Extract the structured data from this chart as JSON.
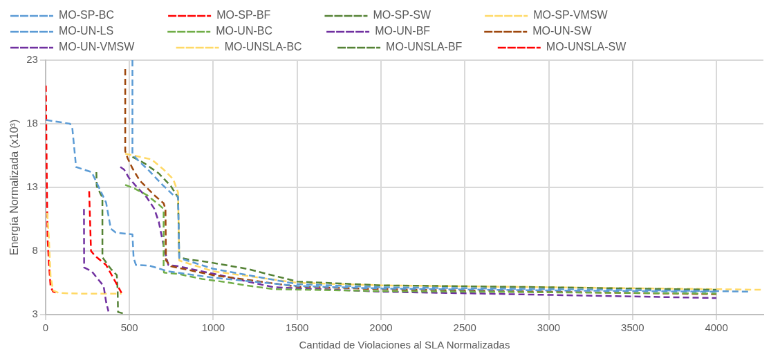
{
  "chart_data": {
    "type": "line",
    "xlabel": "Cantidad de Violaciones al SLA Normalizadas",
    "ylabel": "Energía Normalizada (x10³)",
    "xlim": [
      0,
      4280
    ],
    "xticks": [
      0,
      500,
      1000,
      1500,
      2000,
      2500,
      3000,
      3500,
      4000
    ],
    "ylim": [
      3,
      23
    ],
    "yticks": [
      3,
      8,
      13,
      18,
      23
    ],
    "grid": true,
    "legend": "top",
    "line_style": "dashed",
    "series": [
      {
        "name": "MO-SP-BC",
        "color": "#5b9bd5",
        "x": [
          518,
          518,
          546,
          618,
          697,
          761,
          790,
          797,
          1000,
          1500,
          2000,
          3000,
          4000,
          4190
        ],
        "values": [
          23,
          15.65,
          15.2,
          14.3,
          13.2,
          12.4,
          12.3,
          7.45,
          6.6,
          5.4,
          5.15,
          5.0,
          4.85,
          4.8
        ]
      },
      {
        "name": "MO-SP-BF",
        "color": "#ff0000",
        "x": [
          260,
          271,
          296,
          361,
          403,
          453
        ],
        "values": [
          12.7,
          8.0,
          7.6,
          6.9,
          5.9,
          4.7
        ]
      },
      {
        "name": "MO-SP-SW",
        "color": "#548235",
        "x": [
          518,
          589,
          675,
          747,
          790,
          797,
          847,
          961,
          1200,
          1500,
          2000,
          3000,
          4000
        ],
        "values": [
          15.4,
          14.9,
          14.1,
          13.1,
          12.2,
          7.5,
          7.35,
          7.15,
          6.6,
          5.6,
          5.3,
          5.15,
          4.95
        ]
      },
      {
        "name": "MO-SP-VMSW",
        "color": "#ffd966",
        "x": [
          475,
          561,
          632,
          704,
          761,
          790,
          797,
          1000,
          1500,
          2000,
          3000,
          4000,
          4270
        ],
        "values": [
          15.65,
          15.4,
          15.2,
          14.4,
          13.65,
          12.6,
          7.25,
          6.4,
          5.5,
          5.3,
          5.15,
          5.0,
          4.95
        ]
      },
      {
        "name": "MO-UN-LS",
        "color": "#5b9bd5",
        "x": [
          3,
          146,
          160,
          182,
          275,
          361,
          389,
          418,
          518,
          525,
          539,
          618,
          732,
          1000,
          1500,
          2000,
          3000,
          4000
        ],
        "values": [
          18.3,
          18.0,
          17.6,
          14.6,
          14.2,
          11.8,
          9.75,
          9.45,
          9.3,
          7.45,
          6.9,
          6.85,
          6.4,
          5.9,
          5.25,
          5.05,
          4.9,
          4.8
        ]
      },
      {
        "name": "MO-UN-BC",
        "color": "#70ad47",
        "x": [
          475,
          532,
          604,
          675,
          704,
          704,
          706,
          790,
          933,
          1076,
          1219,
          1362,
          2000,
          3000,
          4000
        ],
        "values": [
          13.2,
          12.9,
          12.4,
          11.65,
          11.3,
          6.7,
          6.3,
          6.2,
          5.8,
          5.55,
          5.25,
          5.0,
          4.85,
          4.75,
          4.65
        ]
      },
      {
        "name": "MO-UN-BF",
        "color": "#7030a0",
        "x": [
          229,
          230,
          275,
          346,
          361,
          375
        ],
        "values": [
          11.3,
          6.7,
          6.4,
          5.25,
          4.0,
          3.25
        ]
      },
      {
        "name": "MO-UN-SW",
        "color": "#9e480e",
        "x": [
          475,
          475,
          489,
          518,
          561,
          647,
          704,
          715,
          718,
          747,
          1000,
          1500,
          2000,
          3000,
          4000
        ],
        "values": [
          22.3,
          15.85,
          15.3,
          14.5,
          13.55,
          12.4,
          11.75,
          11.3,
          7.25,
          6.8,
          6.1,
          5.2,
          5.0,
          4.8,
          4.6
        ]
      },
      {
        "name": "MO-UN-VMSW",
        "color": "#7030a0",
        "x": [
          446,
          468,
          497,
          546,
          604,
          647,
          675,
          704,
          732,
          790,
          933,
          1076,
          1219,
          1362,
          2000,
          3000,
          4000
        ],
        "values": [
          14.6,
          14.4,
          13.75,
          13.0,
          12.2,
          11.35,
          10.3,
          8.4,
          6.9,
          6.8,
          6.4,
          6.0,
          5.55,
          5.15,
          4.8,
          4.55,
          4.3
        ]
      },
      {
        "name": "MO-UNSLA-BC",
        "color": "#ffd966",
        "x": [
          10,
          20,
          30,
          45,
          80,
          200,
          453
        ],
        "values": [
          11,
          9,
          6,
          4.9,
          4.7,
          4.65,
          4.65
        ]
      },
      {
        "name": "MO-UNSLA-BF",
        "color": "#548235",
        "x": [
          303,
          305,
          339,
          339,
          389,
          425,
          430,
          432,
          461
        ],
        "values": [
          14.2,
          13.1,
          12.2,
          7.5,
          6.6,
          6.1,
          4.8,
          3.2,
          3.1
        ]
      },
      {
        "name": "MO-UNSLA-SW",
        "color": "#ff0000",
        "x": [
          2,
          8,
          12,
          20,
          30,
          45,
          70
        ],
        "values": [
          21,
          13,
          9,
          7,
          5.2,
          4.8,
          4.7
        ]
      }
    ]
  }
}
